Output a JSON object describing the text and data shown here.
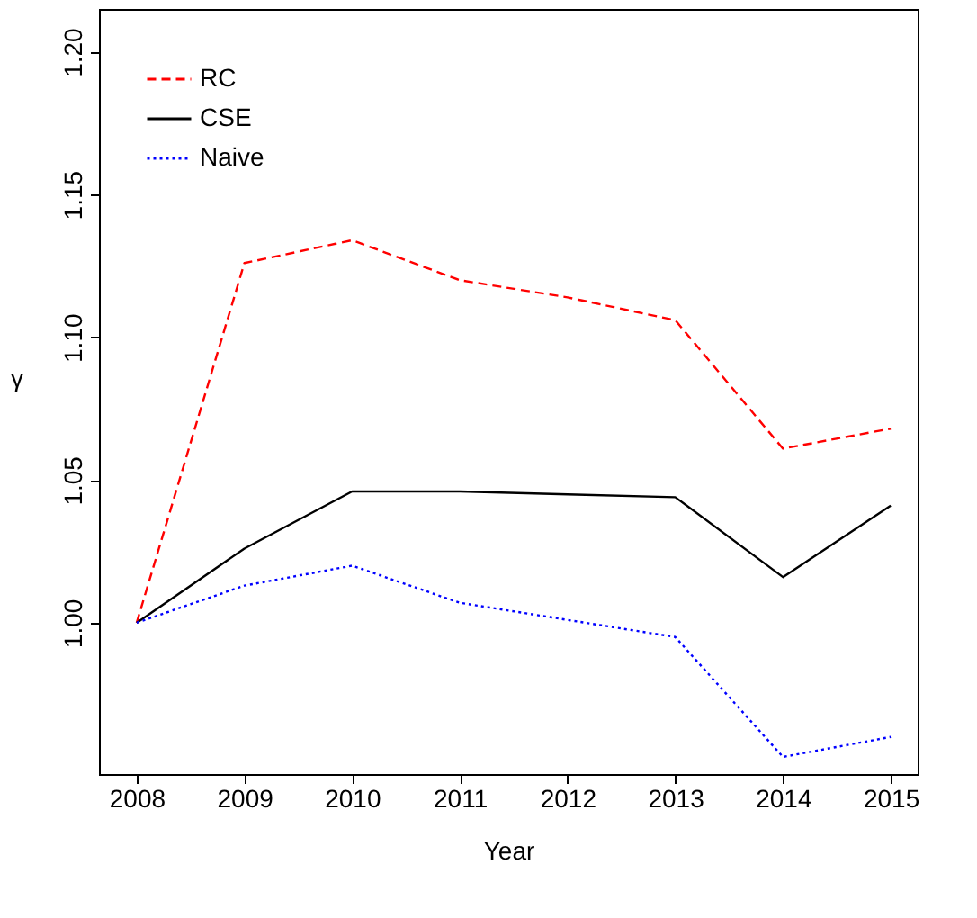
{
  "chart_data": {
    "type": "line",
    "xlabel": "Year",
    "ylabel": "γ",
    "x": [
      2008,
      2009,
      2010,
      2011,
      2012,
      2013,
      2014,
      2015
    ],
    "series": [
      {
        "name": "RC",
        "color": "#ff0000",
        "line_style": "dashed",
        "values": [
          1.0,
          1.126,
          1.134,
          1.12,
          1.114,
          1.106,
          1.061,
          1.068
        ]
      },
      {
        "name": "CSE",
        "color": "#000000",
        "line_style": "solid",
        "values": [
          1.0,
          1.026,
          1.046,
          1.046,
          1.045,
          1.044,
          1.016,
          1.041
        ]
      },
      {
        "name": "Naive",
        "color": "#0000ff",
        "line_style": "dotted",
        "values": [
          1.0,
          1.013,
          1.02,
          1.007,
          1.001,
          0.995,
          0.953,
          0.96
        ]
      }
    ],
    "xlim": [
      2007.65,
      2015.25
    ],
    "xticks": [
      2008,
      2009,
      2010,
      2011,
      2012,
      2013,
      2014,
      2015
    ],
    "ylim": [
      0.947,
      1.215
    ],
    "yticks": [
      {
        "value": 1.0,
        "label": "1.00"
      },
      1.05,
      {
        "value": 1.1,
        "label": "1.10"
      },
      1.15,
      {
        "value": 1.2,
        "label": "1.20"
      }
    ],
    "grid": false,
    "legend": "top left",
    "marker": "none"
  }
}
